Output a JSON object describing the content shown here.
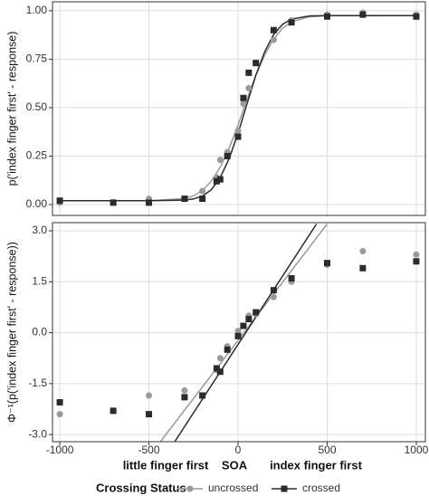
{
  "chart_data": [
    {
      "type": "line",
      "ylabel": "p('index finger first' - response)",
      "x": [
        -1000,
        -700,
        -500,
        -300,
        -200,
        -120,
        -100,
        -60,
        0,
        30,
        60,
        100,
        200,
        300,
        500,
        700,
        1000
      ],
      "xlim": [
        -1041,
        1051
      ],
      "xticks": [
        -1000,
        -500,
        0,
        500,
        1000
      ],
      "ylim": [
        -0.056,
        1.046
      ],
      "yticks": [
        {
          "value": 0,
          "label": "0.00"
        },
        {
          "value": 0.25,
          "label": "0.25"
        },
        {
          "value": 0.5,
          "label": "0.50"
        },
        {
          "value": 0.75,
          "label": "0.75"
        },
        {
          "value": 1,
          "label": "1.00"
        }
      ],
      "grid": true,
      "series": [
        {
          "name": "uncrossed",
          "color": "#9a9a9a",
          "marker": "circle",
          "values": [
            0.01,
            0.01,
            0.03,
            0.03,
            0.07,
            0.14,
            0.23,
            0.27,
            0.38,
            0.52,
            0.6,
            0.73,
            0.85,
            0.95,
            0.98,
            0.99,
            0.98
          ],
          "fit": {
            "x": [
              -1000,
              -500,
              -300,
              -250,
              -200,
              -150,
              -100,
              -50,
              0,
              50,
              100,
              150,
              200,
              250,
              300,
              400,
              500,
              1000
            ],
            "values": [
              0.02,
              0.02,
              0.031,
              0.045,
              0.072,
              0.121,
              0.193,
              0.291,
              0.41,
              0.543,
              0.667,
              0.773,
              0.854,
              0.91,
              0.943,
              0.969,
              0.974,
              0.975
            ]
          }
        },
        {
          "name": "crossed",
          "color": "#2b2b2b",
          "marker": "square",
          "values": [
            0.02,
            0.01,
            0.01,
            0.03,
            0.03,
            0.12,
            0.13,
            0.25,
            0.35,
            0.55,
            0.68,
            0.73,
            0.9,
            0.94,
            0.97,
            0.98,
            0.97
          ],
          "fit": {
            "x": [
              -1000,
              -500,
              -300,
              -250,
              -200,
              -150,
              -100,
              -50,
              0,
              50,
              100,
              150,
              200,
              250,
              300,
              400,
              500,
              1000
            ],
            "values": [
              0.02,
              0.02,
              0.023,
              0.029,
              0.044,
              0.076,
              0.139,
              0.237,
              0.367,
              0.519,
              0.667,
              0.789,
              0.878,
              0.93,
              0.957,
              0.973,
              0.975,
              0.975
            ]
          }
        }
      ]
    },
    {
      "type": "line",
      "ylabel": "Φ⁻¹(p('index finger first' - response))",
      "xlabel_left": "little finger first",
      "xlabel": "SOA",
      "xlabel_right": "index finger first",
      "legend_title": "Crossing Status",
      "x": [
        -1000,
        -700,
        -500,
        -300,
        -200,
        -120,
        -100,
        -60,
        0,
        30,
        60,
        100,
        200,
        300,
        500,
        700,
        1000
      ],
      "xlim": [
        -1041,
        1051
      ],
      "xticks": [
        -1000,
        -500,
        0,
        500,
        1000
      ],
      "ylim": [
        -3.21,
        3.24
      ],
      "yticks": [
        {
          "value": -3,
          "label": "-3.0"
        },
        {
          "value": -1.5,
          "label": "-1.5"
        },
        {
          "value": 0,
          "label": "0.0"
        },
        {
          "value": 1.5,
          "label": "1.5"
        },
        {
          "value": 3,
          "label": "3.0"
        }
      ],
      "grid": true,
      "series": [
        {
          "name": "uncrossed",
          "color": "#9a9a9a",
          "marker": "circle",
          "values": [
            -2.4,
            -2.3,
            -1.85,
            -1.7,
            -1.85,
            -1.1,
            -0.75,
            -0.4,
            0.05,
            0.2,
            0.5,
            0.55,
            1.05,
            1.5,
            2.0,
            2.4,
            2.3
          ],
          "fit": {
            "x": [
              -434,
              500
            ],
            "values": [
              -3.2,
              3.2
            ]
          }
        },
        {
          "name": "crossed",
          "color": "#2b2b2b",
          "marker": "square",
          "values": [
            -2.05,
            -2.3,
            -2.4,
            -1.9,
            -1.85,
            -1.05,
            -1.15,
            -0.5,
            -0.1,
            0.2,
            0.4,
            0.6,
            1.25,
            1.6,
            2.05,
            1.9,
            2.1
          ],
          "fit": {
            "x": [
              -354,
              440
            ],
            "values": [
              -3.2,
              3.2
            ]
          }
        }
      ]
    }
  ]
}
